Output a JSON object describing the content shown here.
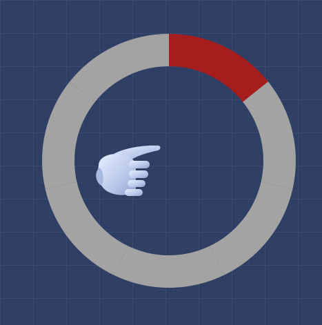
{
  "scene": {
    "background_color": "#2f3f63",
    "grid_color": "#3d4f78",
    "grid_minor_color": "#36476e"
  },
  "radial_menu": {
    "segment_count": 7,
    "selected_index": 0,
    "ring_color": "#a3a3a3",
    "selected_color": "#a51d1d"
  },
  "cursor": {
    "icon": "hand-pointer-icon",
    "color": "#c7d6f2"
  }
}
